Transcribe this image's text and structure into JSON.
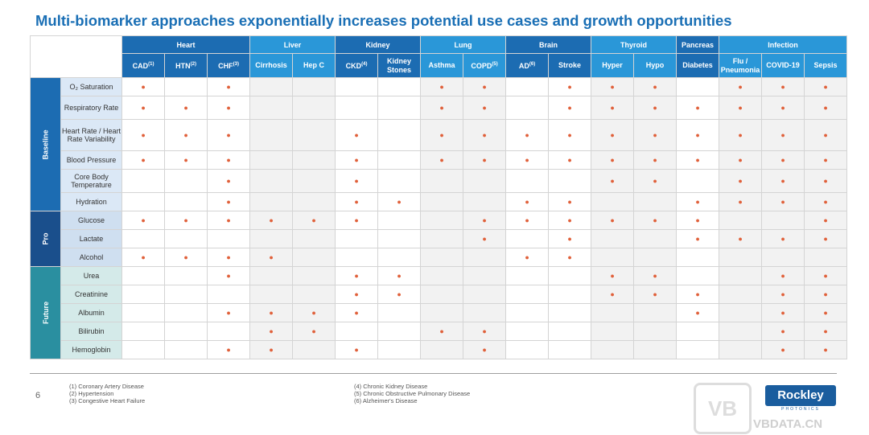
{
  "title": "Multi-biomarker approaches exponentially increases potential use cases and growth opportunities",
  "groups": [
    {
      "label": "Heart",
      "span": 3,
      "color": "#1c6cb2"
    },
    {
      "label": "Liver",
      "span": 2,
      "color": "#2a97d8"
    },
    {
      "label": "Kidney",
      "span": 2,
      "color": "#1c6cb2"
    },
    {
      "label": "Lung",
      "span": 2,
      "color": "#2a97d8"
    },
    {
      "label": "Brain",
      "span": 2,
      "color": "#1c6cb2"
    },
    {
      "label": "Thyroid",
      "span": 2,
      "color": "#2a97d8"
    },
    {
      "label": "Pancreas",
      "span": 1,
      "color": "#1c6cb2"
    },
    {
      "label": "Infection",
      "span": 3,
      "color": "#2a97d8"
    }
  ],
  "columns": [
    {
      "label": "CAD",
      "sup": "(1)"
    },
    {
      "label": "HTN",
      "sup": "(2)"
    },
    {
      "label": "CHF",
      "sup": "(3)"
    },
    {
      "label": "Cirrhosis",
      "sup": ""
    },
    {
      "label": "Hep C",
      "sup": ""
    },
    {
      "label": "CKD",
      "sup": "(4)"
    },
    {
      "label": "Kidney Stones",
      "sup": ""
    },
    {
      "label": "Asthma",
      "sup": ""
    },
    {
      "label": "COPD",
      "sup": "(5)"
    },
    {
      "label": "AD",
      "sup": "(6)"
    },
    {
      "label": "Stroke",
      "sup": ""
    },
    {
      "label": "Hyper",
      "sup": ""
    },
    {
      "label": "Hypo",
      "sup": ""
    },
    {
      "label": "Diabetes",
      "sup": ""
    },
    {
      "label": "Flu / Pneumonia",
      "sup": ""
    },
    {
      "label": "COVID-19",
      "sup": ""
    },
    {
      "label": "Sepsis",
      "sup": ""
    }
  ],
  "marker": "●",
  "categories": [
    {
      "label": "Baseline",
      "color": "#1c6cb2",
      "label_bg": "#dbe8f6",
      "rows": [
        {
          "label": "O₂ Saturation",
          "marks": [
            1,
            0,
            1,
            0,
            0,
            0,
            0,
            1,
            1,
            0,
            1,
            1,
            1,
            0,
            1,
            1,
            1
          ]
        },
        {
          "label": "Respiratory Rate",
          "marks": [
            1,
            1,
            1,
            0,
            0,
            0,
            0,
            1,
            1,
            0,
            1,
            1,
            1,
            1,
            1,
            1,
            1
          ]
        },
        {
          "label": "Heart Rate / Heart Rate Variability",
          "marks": [
            1,
            1,
            1,
            0,
            0,
            1,
            0,
            1,
            1,
            1,
            1,
            1,
            1,
            1,
            1,
            1,
            1
          ]
        },
        {
          "label": "Blood Pressure",
          "marks": [
            1,
            1,
            1,
            0,
            0,
            1,
            0,
            1,
            1,
            1,
            1,
            1,
            1,
            1,
            1,
            1,
            1
          ]
        },
        {
          "label": "Core Body Temperature",
          "marks": [
            0,
            0,
            1,
            0,
            0,
            1,
            0,
            0,
            0,
            0,
            0,
            1,
            1,
            0,
            1,
            1,
            1
          ]
        },
        {
          "label": "Hydration",
          "marks": [
            0,
            0,
            1,
            0,
            0,
            1,
            1,
            0,
            0,
            1,
            1,
            0,
            0,
            1,
            1,
            1,
            1
          ]
        }
      ]
    },
    {
      "label": "Pro",
      "color": "#1a4f8c",
      "label_bg": "#cfdff0",
      "rows": [
        {
          "label": "Glucose",
          "marks": [
            1,
            1,
            1,
            1,
            1,
            1,
            0,
            0,
            1,
            1,
            1,
            1,
            1,
            1,
            0,
            0,
            1
          ]
        },
        {
          "label": "Lactate",
          "marks": [
            0,
            0,
            0,
            0,
            0,
            0,
            0,
            0,
            1,
            0,
            1,
            0,
            0,
            1,
            1,
            1,
            1
          ]
        },
        {
          "label": "Alcohol",
          "marks": [
            1,
            1,
            1,
            1,
            0,
            0,
            0,
            0,
            0,
            1,
            1,
            0,
            0,
            0,
            0,
            0,
            0
          ]
        }
      ]
    },
    {
      "label": "Future",
      "color": "#2a8fa0",
      "label_bg": "#d4eae9",
      "rows": [
        {
          "label": "Urea",
          "marks": [
            0,
            0,
            1,
            0,
            0,
            1,
            1,
            0,
            0,
            0,
            0,
            1,
            1,
            0,
            0,
            1,
            1
          ]
        },
        {
          "label": "Creatinine",
          "marks": [
            0,
            0,
            0,
            0,
            0,
            1,
            1,
            0,
            0,
            0,
            0,
            1,
            1,
            1,
            0,
            1,
            1
          ]
        },
        {
          "label": "Albumin",
          "marks": [
            0,
            0,
            1,
            1,
            1,
            1,
            0,
            0,
            0,
            0,
            0,
            0,
            0,
            1,
            0,
            1,
            1
          ]
        },
        {
          "label": "Bilirubin",
          "marks": [
            0,
            0,
            0,
            1,
            1,
            0,
            0,
            1,
            1,
            0,
            0,
            0,
            0,
            0,
            0,
            1,
            1
          ]
        },
        {
          "label": "Hemoglobin",
          "marks": [
            0,
            0,
            1,
            1,
            0,
            1,
            0,
            0,
            1,
            0,
            0,
            0,
            0,
            0,
            0,
            1,
            1
          ]
        }
      ]
    }
  ],
  "footnotes_left": [
    "(1) Coronary Artery Disease",
    "(2) Hypertension",
    "(3) Congestive Heart Failure"
  ],
  "footnotes_right": [
    "(4) Chronic Kidney Disease",
    "(5) Chronic Obstructive Pulmonary Disease",
    "(6) Alzheimer's Disease"
  ],
  "page_number": "6",
  "logo": {
    "name": "Rockley",
    "sub": "PHOTONICS"
  },
  "watermark": {
    "mark": "VB",
    "text": "VBDATA.CN"
  }
}
